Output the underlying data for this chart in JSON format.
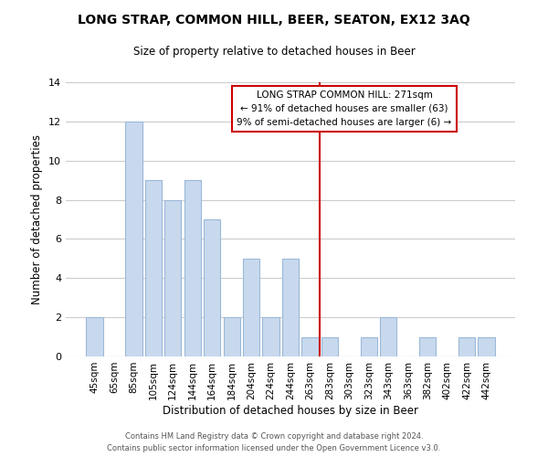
{
  "title": "LONG STRAP, COMMON HILL, BEER, SEATON, EX12 3AQ",
  "subtitle": "Size of property relative to detached houses in Beer",
  "xlabel": "Distribution of detached houses by size in Beer",
  "ylabel": "Number of detached properties",
  "bar_labels": [
    "45sqm",
    "65sqm",
    "85sqm",
    "105sqm",
    "124sqm",
    "144sqm",
    "164sqm",
    "184sqm",
    "204sqm",
    "224sqm",
    "244sqm",
    "263sqm",
    "283sqm",
    "303sqm",
    "323sqm",
    "343sqm",
    "363sqm",
    "382sqm",
    "402sqm",
    "422sqm",
    "442sqm"
  ],
  "bar_values": [
    2,
    0,
    12,
    9,
    8,
    9,
    7,
    2,
    5,
    2,
    5,
    1,
    1,
    0,
    1,
    2,
    0,
    1,
    0,
    1,
    1
  ],
  "bar_color": "#c8d9ee",
  "bar_edge_color": "#9ab8d8",
  "vline_x_index": 11.5,
  "vline_color": "#cc0000",
  "ylim": [
    0,
    14
  ],
  "yticks": [
    0,
    2,
    4,
    6,
    8,
    10,
    12,
    14
  ],
  "annotation_title": "LONG STRAP COMMON HILL: 271sqm",
  "annotation_line1": "← 91% of detached houses are smaller (63)",
  "annotation_line2": "9% of semi-detached houses are larger (6) →",
  "annotation_box_color": "#ffffff",
  "annotation_box_edge": "#cc0000",
  "footer1": "Contains HM Land Registry data © Crown copyright and database right 2024.",
  "footer2": "Contains public sector information licensed under the Open Government Licence v3.0.",
  "background_color": "#ffffff",
  "grid_color": "#cccccc"
}
